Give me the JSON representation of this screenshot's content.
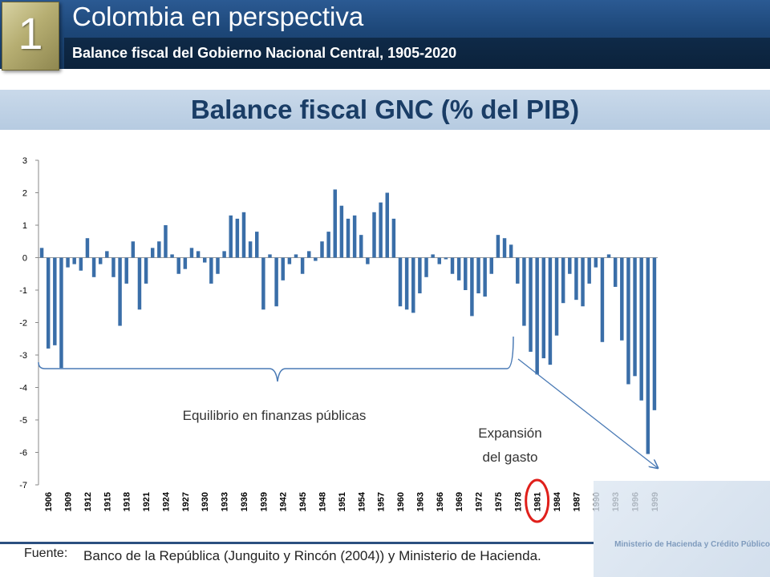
{
  "header": {
    "badge": "1",
    "title": "Colombia en perspectiva",
    "subtitle": "Balance fiscal del Gobierno Nacional Central, 1905-2020"
  },
  "banner": {
    "title": "Balance fiscal GNC  (% del PIB)"
  },
  "chart_data": {
    "type": "bar",
    "title": "Balance fiscal GNC  (% del PIB)",
    "x_start": 1905,
    "x_end": 2000,
    "ylim": [
      -7,
      3
    ],
    "yticks": [
      3,
      2,
      1,
      0,
      -1,
      -2,
      -3,
      -4,
      -5,
      -6,
      -7
    ],
    "xtick_labels": [
      "1906",
      "1909",
      "1912",
      "1915",
      "1918",
      "1921",
      "1924",
      "1927",
      "1930",
      "1933",
      "1936",
      "1939",
      "1942",
      "1945",
      "1948",
      "1951",
      "1954",
      "1957",
      "1960",
      "1963",
      "1966",
      "1969",
      "1972",
      "1975",
      "1978",
      "1981",
      "1984",
      "1987",
      "1990",
      "1993",
      "1996",
      "1999"
    ],
    "highlighted_tick": "1981",
    "bar_color": "#3a6ea8",
    "highlight_color": "#e0201b",
    "grid": false,
    "values": [
      0.3,
      -2.8,
      -2.7,
      -3.4,
      -0.3,
      -0.2,
      -0.4,
      0.6,
      -0.6,
      -0.2,
      0.2,
      -0.6,
      -2.1,
      -0.8,
      0.5,
      -1.6,
      -0.8,
      0.3,
      0.5,
      1.0,
      0.1,
      -0.5,
      -0.35,
      0.3,
      0.2,
      -0.15,
      -0.8,
      -0.5,
      0.2,
      1.3,
      1.2,
      1.4,
      0.5,
      0.8,
      -1.6,
      0.1,
      -1.5,
      -0.7,
      -0.2,
      0.1,
      -0.5,
      0.2,
      -0.1,
      0.5,
      0.8,
      2.1,
      1.6,
      1.2,
      1.3,
      0.7,
      -0.2,
      1.4,
      1.7,
      2.0,
      1.2,
      -1.5,
      -1.6,
      -1.7,
      -1.1,
      -0.6,
      0.1,
      -0.2,
      -0.05,
      -0.5,
      -0.7,
      -1.0,
      -1.8,
      -1.1,
      -1.2,
      -0.5,
      0.7,
      0.6,
      0.4,
      -0.8,
      -2.1,
      -2.9,
      -3.6,
      -3.1,
      -3.3,
      -2.4,
      -1.4,
      -0.5,
      -1.3,
      -1.5,
      -0.8,
      -0.3,
      -2.6,
      0.1,
      -0.9,
      -2.55,
      -3.9,
      -3.65,
      -4.4,
      -6.05,
      -4.7
    ],
    "annotations": {
      "equilibrio": "Equilibrio en finanzas públicas",
      "expansion_line1": "Expansión",
      "expansion_line2": "del gasto"
    }
  },
  "footer": {
    "source_label": "Fuente:",
    "source_text": "Banco de la República (Junguito y Rincón (2004)) y Ministerio de Hacienda.",
    "logo_text": "Ministerio de Hacienda y Crédito Público"
  }
}
